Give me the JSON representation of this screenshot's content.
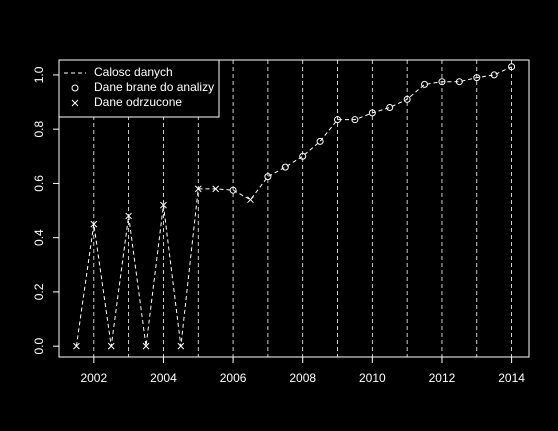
{
  "chart_data": {
    "type": "line",
    "x": [
      2001.5,
      2002,
      2002.5,
      2003,
      2003.5,
      2004,
      2004.5,
      2005,
      2005.5,
      2006,
      2006.5,
      2007,
      2007.5,
      2008,
      2008.5,
      2009,
      2009.5,
      2010,
      2010.5,
      2011,
      2011.5,
      2012,
      2012.5,
      2013,
      2013.5,
      2014
    ],
    "series": [
      {
        "name": "Calosc danych",
        "color": "#ffffff",
        "style": "dashed",
        "values": [
          0,
          0.45,
          0,
          0.48,
          0,
          0.52,
          0,
          0.58,
          0.58,
          0.575,
          0.54,
          0.625,
          0.66,
          0.7,
          0.755,
          0.835,
          0.835,
          0.86,
          0.88,
          0.91,
          0.965,
          0.975,
          0.975,
          0.99,
          1.0,
          1.03
        ]
      },
      {
        "name": "Dane brane do analizy",
        "color": "#ffffff",
        "style": "circle",
        "values": [
          null,
          null,
          null,
          null,
          null,
          null,
          null,
          null,
          null,
          0.575,
          null,
          0.625,
          0.66,
          0.7,
          0.755,
          0.835,
          0.835,
          0.86,
          0.88,
          0.91,
          0.965,
          0.975,
          0.975,
          0.99,
          1.0,
          1.03
        ]
      },
      {
        "name": "Dane odrzucone",
        "color": "#ffffff",
        "style": "cross",
        "values": [
          0,
          0.45,
          0,
          0.48,
          0,
          0.52,
          0,
          0.58,
          0.58,
          null,
          0.54,
          null,
          null,
          null,
          null,
          null,
          null,
          null,
          null,
          null,
          null,
          null,
          null,
          null,
          null,
          null
        ]
      }
    ],
    "xlim": [
      2001,
      2014.5
    ],
    "xticks": [
      2002,
      2004,
      2006,
      2008,
      2010,
      2012,
      2014
    ],
    "ylim": [
      -0.04,
      1.055
    ],
    "yticks": [
      {
        "value": 0,
        "label": "0.0"
      },
      0.2,
      0.4,
      0.6,
      0.8,
      {
        "value": 1,
        "label": "1.0"
      }
    ],
    "vlines": [
      2002,
      2003,
      2004,
      2005,
      2006,
      2007,
      2008,
      2009,
      2010,
      2011,
      2012,
      2013,
      2014
    ],
    "legend": "top-left"
  }
}
